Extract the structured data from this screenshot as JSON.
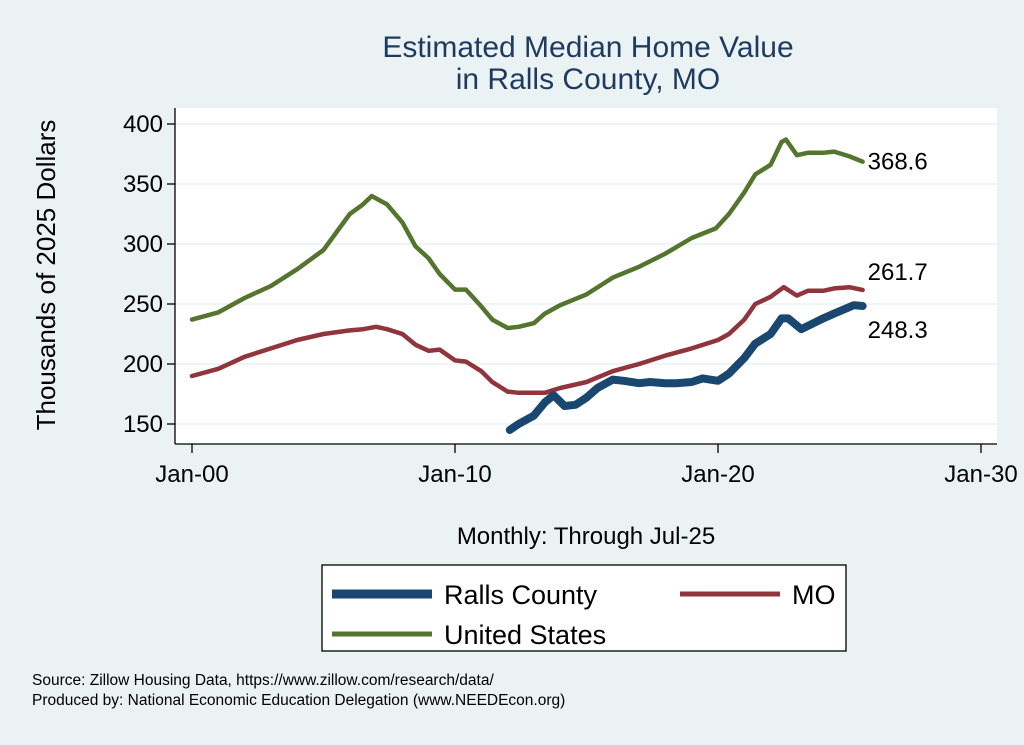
{
  "chart_data": {
    "type": "line",
    "title": [
      "Estimated Median Home Value",
      "in Ralls County, MO"
    ],
    "ylabel": "Thousands of 2025 Dollars",
    "xlabel": "Monthly: Through Jul-25",
    "ylim": [
      140,
      405
    ],
    "yticks": [
      150,
      200,
      250,
      300,
      350,
      400
    ],
    "xticks": [
      {
        "date": "2000-01",
        "label": "Jan-00"
      },
      {
        "date": "2010-01",
        "label": "Jan-10"
      },
      {
        "date": "2020-01",
        "label": "Jan-20"
      },
      {
        "date": "2030-01",
        "label": "Jan-30"
      }
    ],
    "xlim": [
      "1999-06",
      "2031-02"
    ],
    "grid": true,
    "legend_placement": "bottom",
    "series": [
      {
        "name": "Ralls County",
        "color": "#1a476f",
        "end_label": "248.3",
        "points": [
          [
            "2012-02",
            145
          ],
          [
            "2012-06",
            150
          ],
          [
            "2013-01",
            157
          ],
          [
            "2013-06",
            168
          ],
          [
            "2013-10",
            174
          ],
          [
            "2014-03",
            165
          ],
          [
            "2014-08",
            166
          ],
          [
            "2015-01",
            172
          ],
          [
            "2015-06",
            180
          ],
          [
            "2016-01",
            187
          ],
          [
            "2016-06",
            186
          ],
          [
            "2017-01",
            184
          ],
          [
            "2017-06",
            185
          ],
          [
            "2018-01",
            184
          ],
          [
            "2018-06",
            184
          ],
          [
            "2019-01",
            185
          ],
          [
            "2019-06",
            188
          ],
          [
            "2020-01",
            186
          ],
          [
            "2020-06",
            192
          ],
          [
            "2021-01",
            205
          ],
          [
            "2021-06",
            217
          ],
          [
            "2022-01",
            225
          ],
          [
            "2022-06",
            238
          ],
          [
            "2022-09",
            238
          ],
          [
            "2023-03",
            229
          ],
          [
            "2024-01",
            238
          ],
          [
            "2024-06",
            242
          ],
          [
            "2025-03",
            249
          ],
          [
            "2025-07",
            248.3
          ]
        ]
      },
      {
        "name": "MO",
        "color": "#90353b",
        "end_label": "261.7",
        "points": [
          [
            "2000-01",
            190
          ],
          [
            "2001-01",
            196
          ],
          [
            "2002-01",
            206
          ],
          [
            "2003-01",
            213
          ],
          [
            "2004-01",
            220
          ],
          [
            "2005-01",
            225
          ],
          [
            "2006-01",
            228
          ],
          [
            "2006-07",
            229
          ],
          [
            "2007-01",
            231
          ],
          [
            "2007-06",
            229
          ],
          [
            "2008-01",
            225
          ],
          [
            "2008-07",
            216
          ],
          [
            "2009-01",
            211
          ],
          [
            "2009-06",
            212
          ],
          [
            "2010-01",
            203
          ],
          [
            "2010-06",
            202
          ],
          [
            "2011-01",
            194
          ],
          [
            "2011-06",
            185
          ],
          [
            "2012-01",
            177
          ],
          [
            "2012-06",
            176
          ],
          [
            "2013-01",
            176
          ],
          [
            "2013-06",
            176
          ],
          [
            "2014-01",
            180
          ],
          [
            "2015-01",
            185
          ],
          [
            "2016-01",
            194
          ],
          [
            "2017-01",
            200
          ],
          [
            "2018-01",
            207
          ],
          [
            "2019-01",
            213
          ],
          [
            "2020-01",
            220
          ],
          [
            "2020-06",
            225
          ],
          [
            "2021-01",
            237
          ],
          [
            "2021-06",
            250
          ],
          [
            "2022-01",
            256
          ],
          [
            "2022-07",
            264
          ],
          [
            "2023-01",
            257
          ],
          [
            "2023-06",
            261
          ],
          [
            "2024-01",
            261
          ],
          [
            "2024-06",
            263
          ],
          [
            "2025-01",
            264
          ],
          [
            "2025-07",
            261.7
          ]
        ]
      },
      {
        "name": "United States",
        "color": "#55752f",
        "end_label": "368.6",
        "points": [
          [
            "2000-01",
            237
          ],
          [
            "2001-01",
            243
          ],
          [
            "2002-01",
            255
          ],
          [
            "2003-01",
            265
          ],
          [
            "2004-01",
            279
          ],
          [
            "2005-01",
            295
          ],
          [
            "2005-07",
            310
          ],
          [
            "2006-01",
            325
          ],
          [
            "2006-07",
            333
          ],
          [
            "2006-11",
            340
          ],
          [
            "2007-06",
            333
          ],
          [
            "2008-01",
            318
          ],
          [
            "2008-07",
            298
          ],
          [
            "2009-01",
            288
          ],
          [
            "2009-06",
            275
          ],
          [
            "2010-01",
            262
          ],
          [
            "2010-06",
            262
          ],
          [
            "2011-01",
            248
          ],
          [
            "2011-06",
            237
          ],
          [
            "2012-01",
            230
          ],
          [
            "2012-06",
            231
          ],
          [
            "2013-01",
            234
          ],
          [
            "2013-06",
            242
          ],
          [
            "2014-01",
            249
          ],
          [
            "2015-01",
            258
          ],
          [
            "2016-01",
            272
          ],
          [
            "2017-01",
            281
          ],
          [
            "2018-01",
            292
          ],
          [
            "2019-01",
            305
          ],
          [
            "2019-12",
            313
          ],
          [
            "2020-06",
            325
          ],
          [
            "2021-01",
            343
          ],
          [
            "2021-06",
            358
          ],
          [
            "2022-01",
            366
          ],
          [
            "2022-06",
            385
          ],
          [
            "2022-08",
            387
          ],
          [
            "2023-01",
            374
          ],
          [
            "2023-06",
            376
          ],
          [
            "2024-01",
            376
          ],
          [
            "2024-06",
            377
          ],
          [
            "2025-01",
            373
          ],
          [
            "2025-07",
            368.6
          ]
        ]
      }
    ]
  },
  "notes": {
    "source": "Source: Zillow Housing Data, https://www.zillow.com/research/data/",
    "produced": "Produced by: National Economic Education Delegation (www.NEEDEcon.org)"
  }
}
